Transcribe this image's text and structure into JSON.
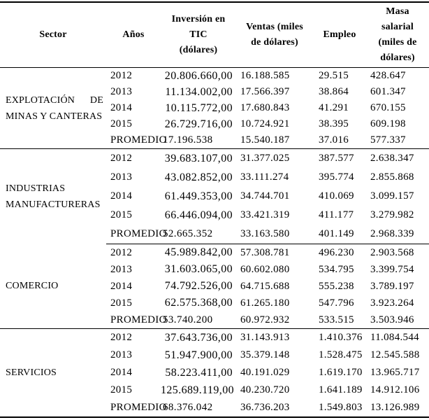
{
  "table": {
    "headers": {
      "sector": "Sector",
      "anios": "Años",
      "inversion": [
        "Inversión en TIC",
        "(dólares)"
      ],
      "ventas": [
        "Ventas (miles",
        "de dólares)"
      ],
      "empleo": "Empleo",
      "masa": [
        "Masa",
        "salarial",
        "(miles de",
        "dólares)"
      ]
    },
    "blocks": [
      {
        "sector": "EXPLOTACIÓN DE MINAS Y CANTERAS",
        "rows": [
          {
            "year": "2012",
            "inversion": "20.806.660,00",
            "ventas": "16.188.585",
            "empleo": "29.515",
            "masa": "428.647"
          },
          {
            "year": "2013",
            "inversion": "11.134.002,00",
            "ventas": "17.566.397",
            "empleo": "38.864",
            "masa": "601.347"
          },
          {
            "year": "2014",
            "inversion": "10.115.772,00",
            "ventas": "17.680.843",
            "empleo": "41.291",
            "masa": "670.155"
          },
          {
            "year": "2015",
            "inversion": "26.729.716,00",
            "ventas": "10.724.921",
            "empleo": "38.395",
            "masa": "609.198"
          },
          {
            "year": "PROMEDIO",
            "inversion": "17.196.538",
            "ventas": "15.540.187",
            "empleo": "37.016",
            "masa": "577.337"
          }
        ]
      },
      {
        "sector": "INDUSTRIAS MANUFACTURERAS",
        "rows": [
          {
            "year": "2012",
            "inversion": "39.683.107,00",
            "ventas": "31.377.025",
            "empleo": "387.577",
            "masa": "2.638.347"
          },
          {
            "year": "2013",
            "inversion": "43.082.852,00",
            "ventas": "33.111.274",
            "empleo": "395.774",
            "masa": "2.855.868"
          },
          {
            "year": "2014",
            "inversion": "61.449.353,00",
            "ventas": "34.744.701",
            "empleo": "410.069",
            "masa": "3.099.157"
          },
          {
            "year": "2015",
            "inversion": "66.446.094,00",
            "ventas": "33.421.319",
            "empleo": "411.177",
            "masa": "3.279.982"
          },
          {
            "year": "PROMEDIO",
            "inversion": "52.665.352",
            "ventas": "33.163.580",
            "empleo": "401.149",
            "masa": "2.968.339"
          }
        ]
      },
      {
        "sector": "COMERCIO",
        "rows": [
          {
            "year": "2012",
            "inversion": "45.989.842,00",
            "ventas": "57.308.781",
            "empleo": "496.230",
            "masa": "2.903.568"
          },
          {
            "year": "2013",
            "inversion": "31.603.065,00",
            "ventas": "60.602.080",
            "empleo": "534.795",
            "masa": "3.399.754"
          },
          {
            "year": "2014",
            "inversion": "74.792.526,00",
            "ventas": "64.715.688",
            "empleo": "555.238",
            "masa": "3.789.197"
          },
          {
            "year": "2015",
            "inversion": "62.575.368,00",
            "ventas": "61.265.180",
            "empleo": "547.796",
            "masa": "3.923.264"
          },
          {
            "year": "PROMEDIO",
            "inversion": "53.740.200",
            "ventas": "60.972.932",
            "empleo": "533.515",
            "masa": "3.503.946"
          }
        ]
      },
      {
        "sector": "SERVICIOS",
        "rows": [
          {
            "year": "2012",
            "inversion": "37.643.736,00",
            "ventas": "31.143.913",
            "empleo": "1.410.376",
            "masa": "11.084.544"
          },
          {
            "year": "2013",
            "inversion": "51.947.900,00",
            "ventas": "35.379.148",
            "empleo": "1.528.475",
            "masa": "12.545.588"
          },
          {
            "year": "2014",
            "inversion": "58.223.411,00",
            "ventas": "40.191.029",
            "empleo": "1.619.170",
            "masa": "13.965.717"
          },
          {
            "year": "2015",
            "inversion": "125.689.119,00",
            "ventas": "40.230.720",
            "empleo": "1.641.189",
            "masa": "14.912.106"
          },
          {
            "year": "PROMEDIO",
            "inversion": "68.376.042",
            "ventas": "36.736.203",
            "empleo": "1.549.803",
            "masa": "13.126.989"
          }
        ]
      }
    ]
  }
}
